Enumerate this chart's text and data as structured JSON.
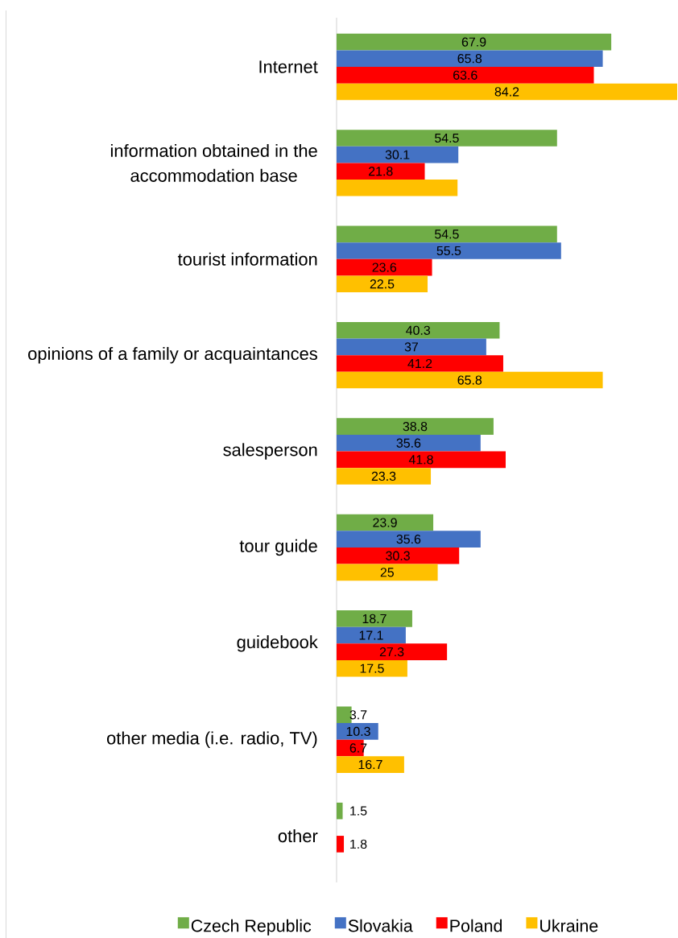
{
  "chart_data": {
    "type": "bar",
    "orientation": "horizontal",
    "legend": "bottom",
    "tick_labels": "y",
    "categories": [
      "Internet",
      "information obtained in the accommodation base",
      "tourist information",
      "opinions of a family or acquaintances",
      "salesperson",
      "tour guide",
      "guidebook",
      "other media (i.e. radio, TV)",
      "other"
    ],
    "series": [
      {
        "name": "Czech Republic",
        "color": "#70ad47",
        "values": [
          67.9,
          54.5,
          54.5,
          40.3,
          38.8,
          23.9,
          18.7,
          3.7,
          1.5
        ],
        "value_labels": [
          "67.9",
          "54.5",
          "54.5",
          "40.3",
          "38.8",
          "23.9",
          "18.7",
          "3.7",
          "1.5"
        ]
      },
      {
        "name": "Slovakia",
        "color": "#4472c4",
        "values": [
          65.8,
          30.1,
          55.5,
          37,
          35.6,
          35.6,
          17.1,
          10.3,
          null
        ],
        "value_labels": [
          "65.8",
          "30.1",
          "55.5",
          "37",
          "35.6",
          "35.6",
          "17.1",
          "10.3",
          null
        ]
      },
      {
        "name": "Poland",
        "color": "#ff0000",
        "values": [
          63.6,
          21.8,
          23.6,
          41.2,
          41.8,
          30.3,
          27.3,
          6.7,
          1.8
        ],
        "value_labels": [
          "63.6",
          "21.8",
          "23.6",
          "41.2",
          "41.8",
          "30.3",
          "27.3",
          "6.7",
          "1.8"
        ]
      },
      {
        "name": "Ukraine",
        "color": "#ffc000",
        "values": [
          84.2,
          29.9,
          22.5,
          65.8,
          23.3,
          25,
          17.5,
          16.7,
          null
        ],
        "value_labels": [
          "84.2",
          null,
          "22.5",
          "65.8",
          "23.3",
          "25",
          "17.5",
          "16.7",
          null
        ]
      }
    ]
  }
}
